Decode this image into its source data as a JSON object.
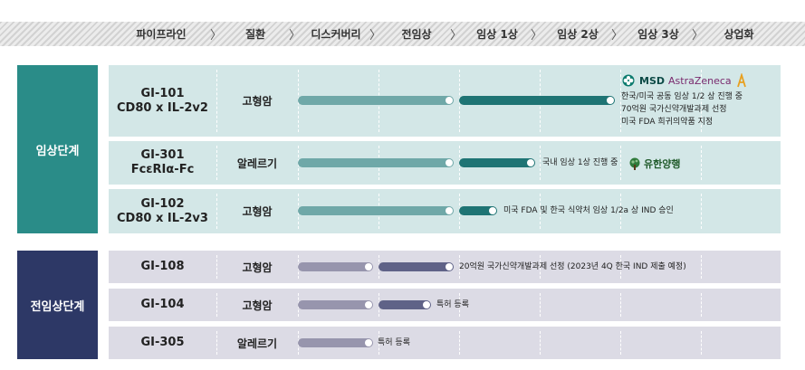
{
  "pipeline": {
    "stages": [
      "파이프라인",
      "질환",
      "디스커버리",
      "전임상",
      "임상 1상",
      "임상 2상",
      "임상 3상",
      "상업화"
    ],
    "chevron": "〉"
  },
  "phases": {
    "clinical": "임상단계",
    "preclinical": "전임상단계"
  },
  "programs": [
    {
      "name_line1": "GI-101",
      "name_line2": "CD80 x IL-2v2",
      "disease": "고형암",
      "reached_stage": "임상 2상",
      "notes": [
        "한국/미국 공동 임상 1/2 상 진행 중",
        "70억원 국가신약개발과제 선정",
        "미국 FDA 희귀의약품 지정"
      ],
      "partner": "MSD AstraZeneca"
    },
    {
      "name_line1": "GI-301",
      "name_line2": "FcεRIα-Fc",
      "disease": "알레르기",
      "reached_stage": "임상 1상",
      "notes": [
        "국내 임상 1상 진행 중"
      ],
      "partner": "유한양행"
    },
    {
      "name_line1": "GI-102",
      "name_line2": "CD80 x IL-2v3",
      "disease": "고형암",
      "reached_stage": "임상 1상",
      "notes": [
        "미국 FDA 및 한국 식약처 임상 1/2a 상 IND 승인"
      ]
    },
    {
      "name_line1": "GI-108",
      "disease": "고형암",
      "reached_stage": "전임상",
      "notes": [
        "20억원 국가신약개발과제 선정 (2023년 4Q 한국 IND 제출 예정)"
      ]
    },
    {
      "name_line1": "GI-104",
      "disease": "고형암",
      "reached_stage": "전임상",
      "notes": [
        "특허 등록"
      ]
    },
    {
      "name_line1": "GI-305",
      "disease": "알레르기",
      "reached_stage": "디스커버리",
      "notes": [
        "특허 등록"
      ]
    }
  ],
  "colors": {
    "clinical_dark": "#1e7474",
    "clinical_light": "#6fa8a8",
    "preclinical_dark": "#5f6287",
    "preclinical_light": "#9795ad",
    "clinical_phase_bg": "#2a8c88",
    "preclinical_phase_bg": "#2d3866"
  }
}
